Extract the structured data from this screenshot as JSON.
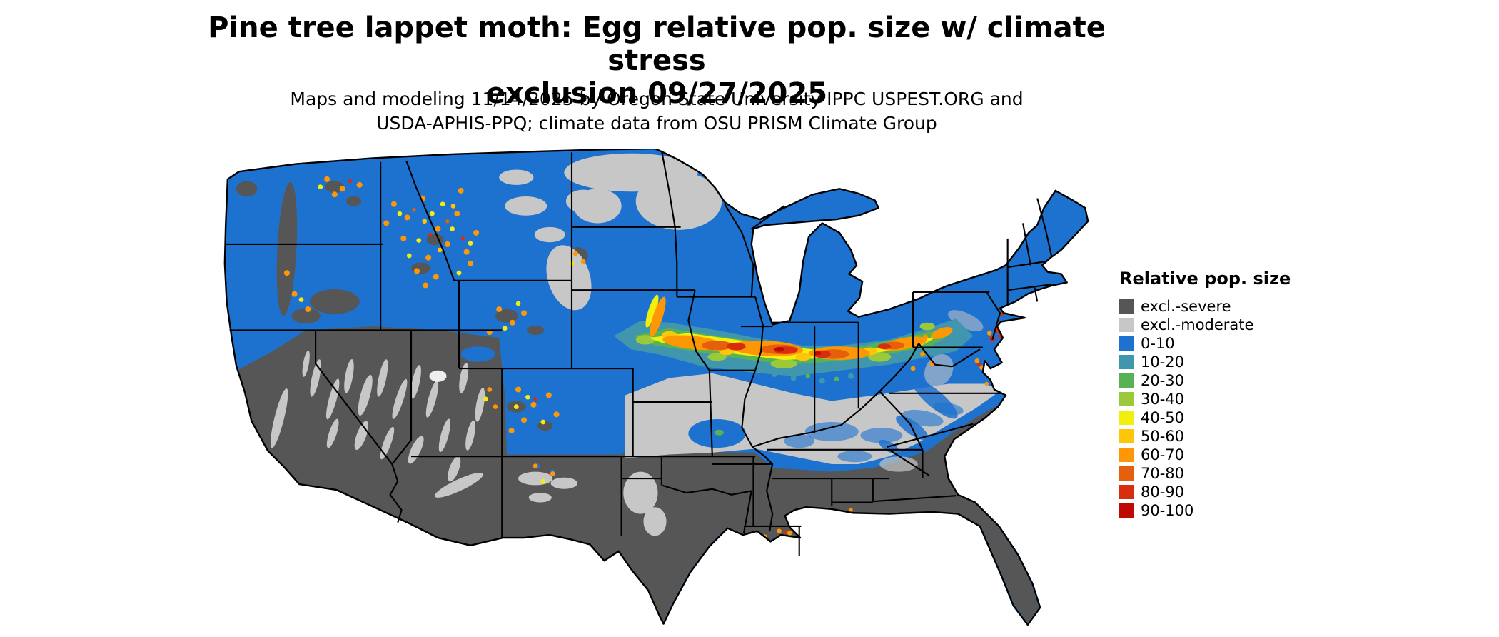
{
  "figure": {
    "title_line1": "Pine tree lappet moth: Egg relative pop. size w/ climate stress",
    "title_line2": "exclusion 09/27/2025",
    "subtitle_line1": "Maps and modeling 11/14/2025 by Oregon State University IPPC USPEST.ORG and",
    "subtitle_line2": "USDA-APHIS-PPQ; climate data from OSU PRISM Climate Group"
  },
  "legend": {
    "title": "Relative pop. size",
    "entries": [
      {
        "label": "excl.-severe",
        "color": "#565656"
      },
      {
        "label": "excl.-moderate",
        "color": "#c7c7c7"
      },
      {
        "label": "0-10",
        "color": "#1d72cf"
      },
      {
        "label": "10-20",
        "color": "#3f96ad"
      },
      {
        "label": "20-30",
        "color": "#57b253"
      },
      {
        "label": "30-40",
        "color": "#9cc93b"
      },
      {
        "label": "40-50",
        "color": "#f2ee0d"
      },
      {
        "label": "50-60",
        "color": "#fec50a"
      },
      {
        "label": "60-70",
        "color": "#fd9705"
      },
      {
        "label": "70-80",
        "color": "#e55f0c"
      },
      {
        "label": "80-90",
        "color": "#d92d0f"
      },
      {
        "label": "90-100",
        "color": "#be0a02"
      }
    ]
  },
  "map": {
    "area": "Continental United States",
    "type": "gridded population-index map with climate stress exclusion zones"
  }
}
